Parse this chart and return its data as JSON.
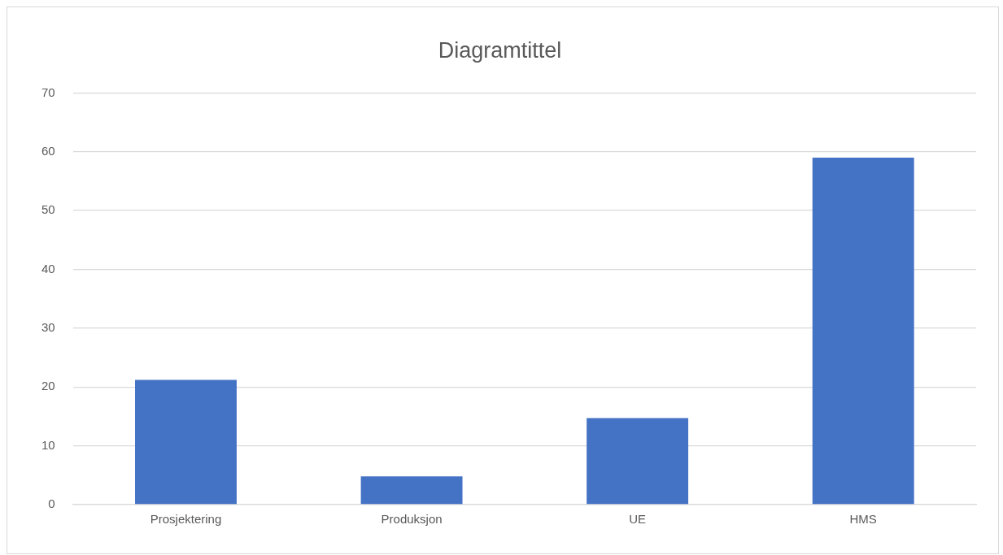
{
  "chart_data": {
    "type": "bar",
    "title": "Diagramtittel",
    "categories": [
      "Prosjektering",
      "Produksjon",
      "UE",
      "HMS"
    ],
    "values": [
      21.2,
      4.8,
      14.7,
      59
    ],
    "color": "#4472c4",
    "ylim": [
      0,
      70
    ],
    "yticks": [
      0,
      10,
      20,
      30,
      40,
      50,
      60,
      70
    ],
    "grid": "y"
  }
}
